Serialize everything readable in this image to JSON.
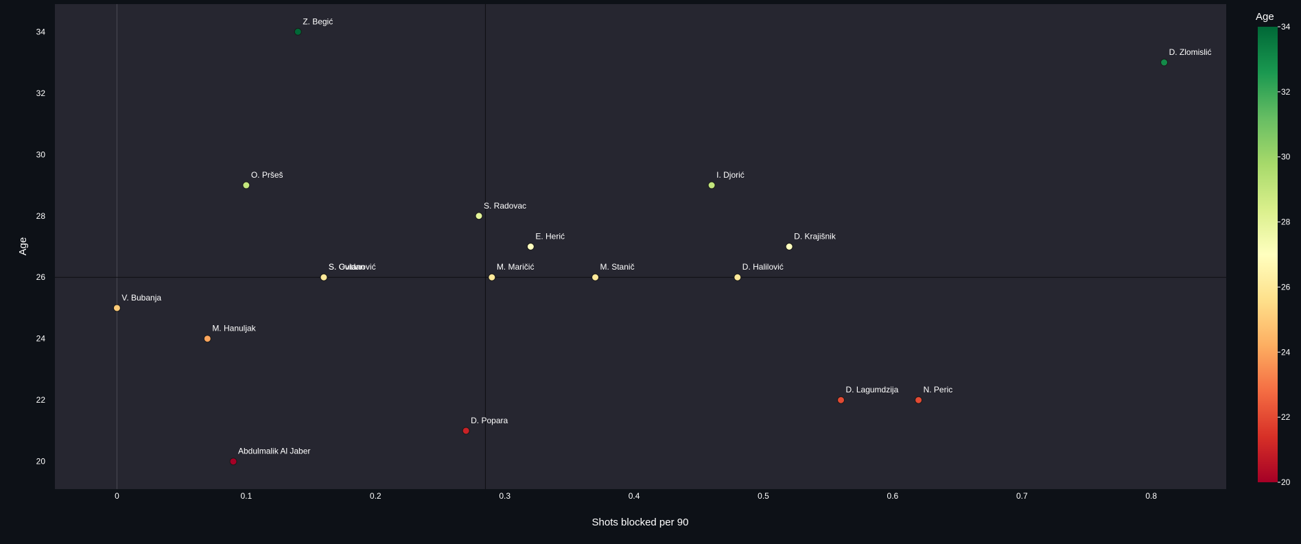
{
  "chart_data": {
    "type": "scatter",
    "xlabel": "Shots blocked per 90",
    "ylabel": "Age",
    "xlim": [
      -0.048,
      0.858
    ],
    "ylim": [
      19.1,
      34.9
    ],
    "x_ticks": [
      0,
      0.1,
      0.2,
      0.3,
      0.4,
      0.5,
      0.6,
      0.7,
      0.8
    ],
    "x_tick_labels": [
      "0",
      "0.1",
      "0.2",
      "0.3",
      "0.4",
      "0.5",
      "0.6",
      "0.7",
      "0.8"
    ],
    "y_ticks": [
      20,
      22,
      24,
      26,
      28,
      30,
      32,
      34
    ],
    "y_tick_labels": [
      "20",
      "22",
      "24",
      "26",
      "28",
      "30",
      "32",
      "34"
    ],
    "reference_lines": {
      "x": 0.285,
      "y": 26
    },
    "colorbar": {
      "title": "Age",
      "min": 20,
      "max": 34,
      "ticks": [
        20,
        22,
        24,
        26,
        28,
        30,
        32,
        34
      ],
      "tick_labels": [
        "20",
        "22",
        "24",
        "26",
        "28",
        "30",
        "32",
        "34"
      ],
      "colorscale": [
        "#a50026",
        "#d73027",
        "#f46d43",
        "#fdae61",
        "#fee08b",
        "#ffffbf",
        "#d9ef8b",
        "#a6d96a",
        "#66bd63",
        "#1a9850",
        "#006837"
      ]
    },
    "points": [
      {
        "name": "Z. Begić",
        "x": 0.14,
        "y": 34
      },
      {
        "name": "D. Zlomislić",
        "x": 0.81,
        "y": 33
      },
      {
        "name": "O. Pršeš",
        "x": 0.1,
        "y": 29
      },
      {
        "name": "I. Djorić",
        "x": 0.46,
        "y": 29
      },
      {
        "name": "S. Radovac",
        "x": 0.28,
        "y": 28
      },
      {
        "name": "E. Herić",
        "x": 0.32,
        "y": 27
      },
      {
        "name": "D. Krajišnik",
        "x": 0.52,
        "y": 27
      },
      {
        "name": "S. Ovidan",
        "x": 0.16,
        "y": 26
      },
      {
        "name": "S. Gutanović",
        "x": 0.16,
        "y": 26
      },
      {
        "name": "M. Maričić",
        "x": 0.29,
        "y": 26
      },
      {
        "name": "M. Stanič",
        "x": 0.37,
        "y": 26
      },
      {
        "name": "D. Halilović",
        "x": 0.48,
        "y": 26
      },
      {
        "name": "V. Bubanja",
        "x": 0.0,
        "y": 25
      },
      {
        "name": "M. Hanuljak",
        "x": 0.07,
        "y": 24
      },
      {
        "name": "D. Lagumdzija",
        "x": 0.56,
        "y": 22
      },
      {
        "name": "N. Peric",
        "x": 0.62,
        "y": 22
      },
      {
        "name": "D. Popara",
        "x": 0.27,
        "y": 21
      },
      {
        "name": "Abdulmalik Al Jaber",
        "x": 0.09,
        "y": 20
      }
    ]
  }
}
